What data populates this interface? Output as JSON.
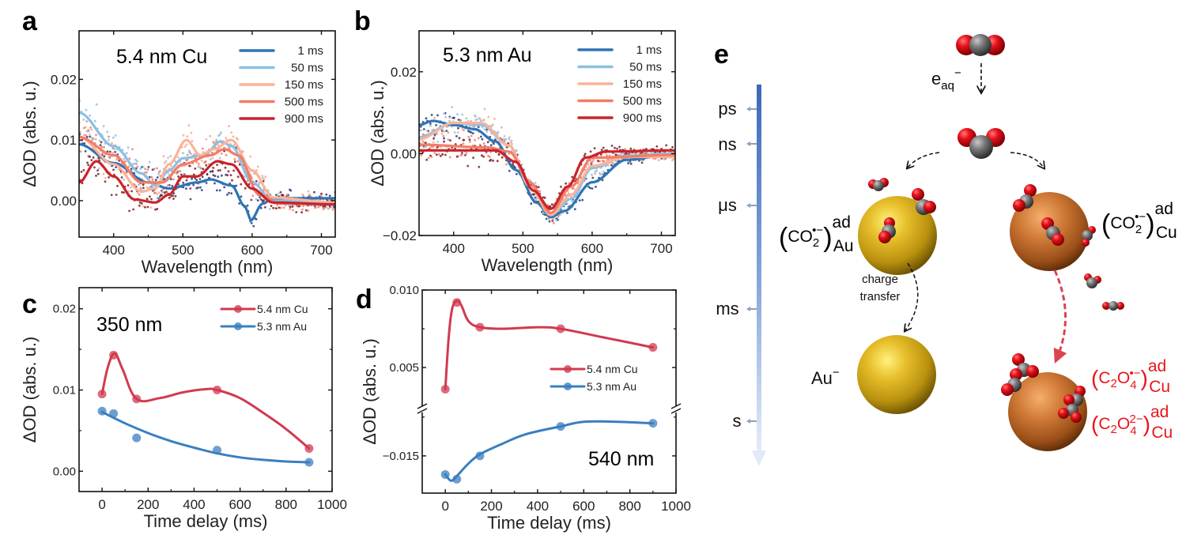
{
  "colors": {
    "t1": "#2f74b5",
    "t50": "#8dc0e2",
    "t150": "#f9b49a",
    "t500": "#f27d67",
    "t900": "#c8242b",
    "cu": "#d13a50",
    "au": "#3a7fc0",
    "red_label": "#e8151b",
    "timeline": "#3f6fc0"
  },
  "chart_data": [
    {
      "id": "a",
      "panel_label": "a",
      "type": "scatter+line",
      "title": "5.4 nm Cu",
      "xlabel": "Wavelength (nm)",
      "ylabel": "ΔOD (abs. u.)",
      "xlim": [
        350,
        720
      ],
      "ylim": [
        -0.006,
        0.028
      ],
      "xticks": [
        400,
        500,
        600,
        700
      ],
      "xtick_labels": [
        "400",
        "500",
        "600",
        "700"
      ],
      "yticks": [
        0.0,
        0.01,
        0.02
      ],
      "ytick_labels": [
        "0.00",
        "0.01",
        "0.02"
      ],
      "legend": "top-right",
      "series": [
        {
          "name": "1 ms",
          "color_key": "t1",
          "x": [
            350,
            400,
            450,
            480,
            520,
            540,
            570,
            590,
            598,
            615,
            630,
            720
          ],
          "y": [
            0.0093,
            0.0062,
            0.003,
            0.002,
            0.003,
            0.0035,
            0.0025,
            -0.001,
            -0.0032,
            -0.0005,
            0.0004,
            0.0004
          ]
        },
        {
          "name": "50 ms",
          "color_key": "t50",
          "x": [
            350,
            400,
            440,
            460,
            480,
            500,
            530,
            555,
            570,
            600,
            630,
            720
          ],
          "y": [
            0.0145,
            0.009,
            0.0045,
            0.0025,
            0.005,
            0.007,
            0.0075,
            0.0098,
            0.009,
            0.003,
            0.0,
            -0.0005
          ]
        },
        {
          "name": "150 ms",
          "color_key": "t150",
          "x": [
            350,
            400,
            440,
            460,
            480,
            505,
            525,
            545,
            570,
            600,
            630,
            720
          ],
          "y": [
            0.0105,
            0.006,
            0.0015,
            0.002,
            0.006,
            0.01,
            0.0075,
            0.0085,
            0.01,
            0.005,
            0.0005,
            -0.0003
          ]
        },
        {
          "name": "500 ms",
          "color_key": "t500",
          "x": [
            350,
            400,
            440,
            470,
            500,
            540,
            560,
            580,
            610,
            640,
            720
          ],
          "y": [
            0.0105,
            0.0075,
            0.003,
            0.003,
            0.006,
            0.0075,
            0.0085,
            0.0075,
            0.001,
            -0.0005,
            -0.0006
          ]
        },
        {
          "name": "900 ms",
          "color_key": "t900",
          "x": [
            350,
            375,
            400,
            430,
            460,
            480,
            500,
            520,
            550,
            570,
            600,
            630,
            720
          ],
          "y": [
            0.003,
            0.0065,
            0.004,
            0.0002,
            -0.0003,
            0.001,
            0.004,
            0.004,
            0.0065,
            0.006,
            0.002,
            -0.0003,
            -0.0006
          ]
        }
      ]
    },
    {
      "id": "b",
      "panel_label": "b",
      "type": "scatter+line",
      "title": "5.3 nm Au",
      "xlabel": "Wavelength (nm)",
      "ylabel": "ΔOD (abs. u.)",
      "xlim": [
        350,
        720
      ],
      "ylim": [
        -0.02,
        0.03
      ],
      "xticks": [
        400,
        500,
        600,
        700
      ],
      "xtick_labels": [
        "400",
        "500",
        "600",
        "700"
      ],
      "yticks": [
        -0.02,
        0.0,
        0.02
      ],
      "ytick_labels": [
        "−0.02",
        "0.00",
        "0.02"
      ],
      "legend": "top-right",
      "series": [
        {
          "name": "1 ms",
          "color_key": "t1",
          "x": [
            350,
            370,
            400,
            430,
            460,
            490,
            520,
            540,
            560,
            600,
            650,
            720
          ],
          "y": [
            0.007,
            0.008,
            0.007,
            0.006,
            0.003,
            -0.004,
            -0.012,
            -0.0155,
            -0.014,
            -0.007,
            -0.0015,
            0.0
          ]
        },
        {
          "name": "50 ms",
          "color_key": "t50",
          "x": [
            350,
            400,
            440,
            480,
            510,
            540,
            570,
            600,
            650,
            720
          ],
          "y": [
            0.004,
            0.0075,
            0.007,
            0.002,
            -0.008,
            -0.015,
            -0.011,
            -0.0035,
            -0.0005,
            0.0
          ]
        },
        {
          "name": "150 ms",
          "color_key": "t150",
          "x": [
            350,
            400,
            440,
            480,
            510,
            540,
            570,
            600,
            650,
            720
          ],
          "y": [
            0.0035,
            0.0075,
            0.0075,
            0.002,
            -0.008,
            -0.015,
            -0.01,
            -0.003,
            -0.0008,
            -0.0008
          ]
        },
        {
          "name": "500 ms",
          "color_key": "t500",
          "x": [
            350,
            450,
            480,
            510,
            540,
            570,
            600,
            720
          ],
          "y": [
            0.0022,
            0.0015,
            0.0005,
            -0.007,
            -0.0145,
            -0.008,
            -0.001,
            -0.0003
          ]
        },
        {
          "name": "900 ms",
          "color_key": "t900",
          "x": [
            350,
            460,
            490,
            515,
            540,
            565,
            590,
            620,
            720
          ],
          "y": [
            0.0008,
            0.0008,
            -0.002,
            -0.009,
            -0.0135,
            -0.008,
            -0.001,
            0.0005,
            0.0008
          ]
        }
      ]
    },
    {
      "id": "c",
      "panel_label": "c",
      "type": "line",
      "title": "350 nm",
      "xlabel": "Time delay (ms)",
      "ylabel": "ΔOD (abs. u.)",
      "xlim": [
        -100,
        1000
      ],
      "ylim": [
        -0.0025,
        0.0226
      ],
      "xticks": [
        0,
        200,
        400,
        600,
        800,
        1000
      ],
      "xtick_labels": [
        "0",
        "200",
        "400",
        "600",
        "800",
        "1000"
      ],
      "yticks": [
        0.0,
        0.01,
        0.02
      ],
      "ytick_labels": [
        "0.00",
        "0.01",
        "0.02"
      ],
      "legend": "top-right",
      "series": [
        {
          "name": "5.4 nm Cu",
          "color_key": "cu",
          "x": [
            0,
            50,
            150,
            500,
            900
          ],
          "y": [
            0.0095,
            0.0143,
            0.0089,
            0.01,
            0.0028
          ],
          "fit_x": [
            0,
            25,
            55,
            90,
            150,
            250,
            350,
            450,
            500,
            600,
            700,
            800,
            900
          ],
          "fit_y": [
            0.0095,
            0.0128,
            0.0145,
            0.0125,
            0.0089,
            0.009,
            0.0097,
            0.0101,
            0.01,
            0.009,
            0.0072,
            0.0052,
            0.0028
          ]
        },
        {
          "name": "5.3 nm Au",
          "color_key": "au",
          "x": [
            0,
            50,
            150,
            500,
            900
          ],
          "y": [
            0.0074,
            0.0071,
            0.0041,
            0.0026,
            0.0011
          ],
          "fit_x": [
            0,
            100,
            200,
            300,
            400,
            500,
            600,
            700,
            800,
            900
          ],
          "fit_y": [
            0.0073,
            0.0059,
            0.0047,
            0.0037,
            0.0029,
            0.0022,
            0.0017,
            0.0014,
            0.0012,
            0.0011
          ]
        }
      ]
    },
    {
      "id": "d",
      "panel_label": "d",
      "type": "line",
      "title": "540 nm",
      "xlabel": "Time delay (ms)",
      "ylabel": "ΔOD (abs. u.)",
      "xlim": [
        -100,
        1000
      ],
      "axis_break": true,
      "ylim_upper": [
        0.0023,
        0.01
      ],
      "ylim_lower": [
        -0.0174,
        -0.012
      ],
      "xticks": [
        0,
        200,
        400,
        600,
        800,
        1000
      ],
      "xtick_labels": [
        "0",
        "200",
        "400",
        "600",
        "800",
        "1000"
      ],
      "yticks": [
        0.01,
        0.005,
        -0.015
      ],
      "ytick_labels": [
        "0.010",
        "0.005",
        "−0.015"
      ],
      "legend": "center-right",
      "series": [
        {
          "name": "5.4 nm Cu",
          "color_key": "cu",
          "x": [
            0,
            50,
            150,
            500,
            900
          ],
          "y": [
            0.0036,
            0.0092,
            0.0076,
            0.0075,
            0.0063
          ],
          "fit_x": [
            0,
            15,
            30,
            50,
            70,
            100,
            150,
            250,
            400,
            500,
            700,
            900
          ],
          "fit_y": [
            0.0036,
            0.007,
            0.0088,
            0.0093,
            0.009,
            0.008,
            0.0076,
            0.0075,
            0.0076,
            0.0075,
            0.0069,
            0.0063
          ]
        },
        {
          "name": "5.3 nm Au",
          "color_key": "au",
          "x": [
            0,
            50,
            150,
            500,
            900
          ],
          "y": [
            -0.0162,
            -0.0165,
            -0.015,
            -0.0131,
            -0.0129
          ],
          "fit_x": [
            0,
            25,
            50,
            100,
            150,
            250,
            350,
            500,
            600,
            750,
            900
          ],
          "fit_y": [
            -0.0162,
            -0.0166,
            -0.0163,
            -0.0155,
            -0.0149,
            -0.0142,
            -0.0136,
            -0.0131,
            -0.0128,
            -0.0128,
            -0.0129
          ]
        }
      ]
    }
  ],
  "scheme": {
    "panel_label": "e",
    "timeline": [
      "ps",
      "ns",
      "μs",
      "ms",
      "s"
    ],
    "electron": {
      "base": "e",
      "sub": "aq",
      "sup": "−"
    },
    "au_adsorbate": {
      "open": "(",
      "species": "CO",
      "sub": "2",
      "sup": "•−",
      "close": ")",
      "ad": "ad",
      "metal": "Au"
    },
    "cu_adsorbate": {
      "open": "(",
      "species": "CO",
      "sub": "2",
      "sup": "•−",
      "close": ")",
      "ad": "ad",
      "metal": "Cu"
    },
    "charge_transfer": [
      "charge",
      "transfer"
    ],
    "au_anion": {
      "base": "Au",
      "sup": "−"
    },
    "oxalate_radical": {
      "open": "(",
      "c": "C",
      "c_sub": "2",
      "o": "O",
      "o_sub": "4",
      "sup": "•−",
      "close": ")",
      "ad": "ad",
      "metal": "Cu"
    },
    "oxalate": {
      "open": "(",
      "c": "C",
      "c_sub": "2",
      "o": "O",
      "o_sub": "4",
      "sup": "2−",
      "close": ")",
      "ad": "ad",
      "metal": "Cu"
    }
  }
}
